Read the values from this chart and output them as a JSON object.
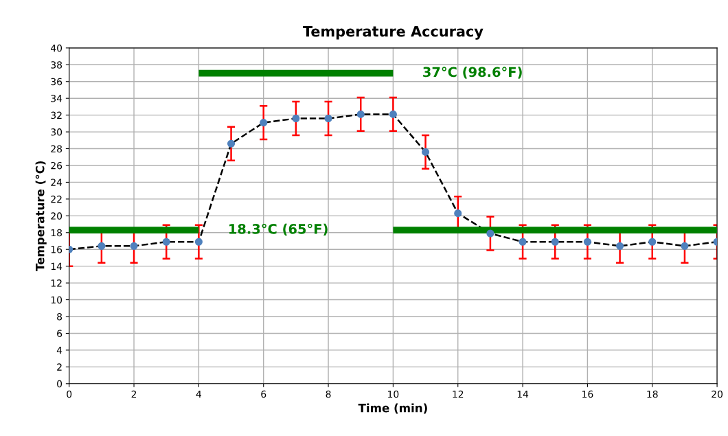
{
  "chart_data": {
    "type": "line",
    "title": "Temperature Accuracy",
    "xlabel": "Time (min)",
    "ylabel": "Temperature (°C)",
    "xlim": [
      0,
      20
    ],
    "xticks": [
      0,
      2,
      4,
      6,
      8,
      10,
      12,
      14,
      16,
      18,
      20
    ],
    "ylim": [
      0,
      40
    ],
    "yticks": [
      0,
      2,
      4,
      6,
      8,
      10,
      12,
      14,
      16,
      18,
      20,
      22,
      24,
      26,
      28,
      30,
      32,
      34,
      36,
      38,
      40
    ],
    "grid": true,
    "series": [
      {
        "color": "#4f81bd",
        "marker": "circle",
        "line_style": "dashed",
        "x": [
          0,
          1,
          2,
          3,
          4,
          5,
          6,
          7,
          8,
          9,
          10,
          11,
          12,
          13,
          14,
          15,
          16,
          17,
          18,
          19,
          20
        ],
        "values": [
          16,
          16.4,
          16.4,
          16.9,
          16.9,
          28.6,
          31.1,
          31.6,
          31.6,
          32.1,
          32.1,
          27.6,
          20.3,
          17.9,
          16.9,
          16.9,
          16.9,
          16.4,
          16.9,
          16.4,
          16.9
        ],
        "errors": [
          2,
          2,
          2,
          2,
          2,
          2,
          2,
          2,
          2,
          2,
          2,
          2,
          2,
          2,
          2,
          2,
          2,
          2,
          2,
          2,
          2
        ]
      },
      {
        "name": "37°C (98.6°F)",
        "color": "#008000",
        "marker": "none",
        "line_style": "solid",
        "x": [
          4,
          10
        ],
        "values": [
          37,
          37
        ]
      },
      {
        "name": "18.3°C (65°F)",
        "color": "#008000",
        "marker": "none",
        "line_style": "solid",
        "x": [
          0,
          4,
          7,
          10,
          20
        ],
        "values": [
          18.3,
          18.3,
          null,
          18.3,
          18.3
        ]
      }
    ]
  }
}
